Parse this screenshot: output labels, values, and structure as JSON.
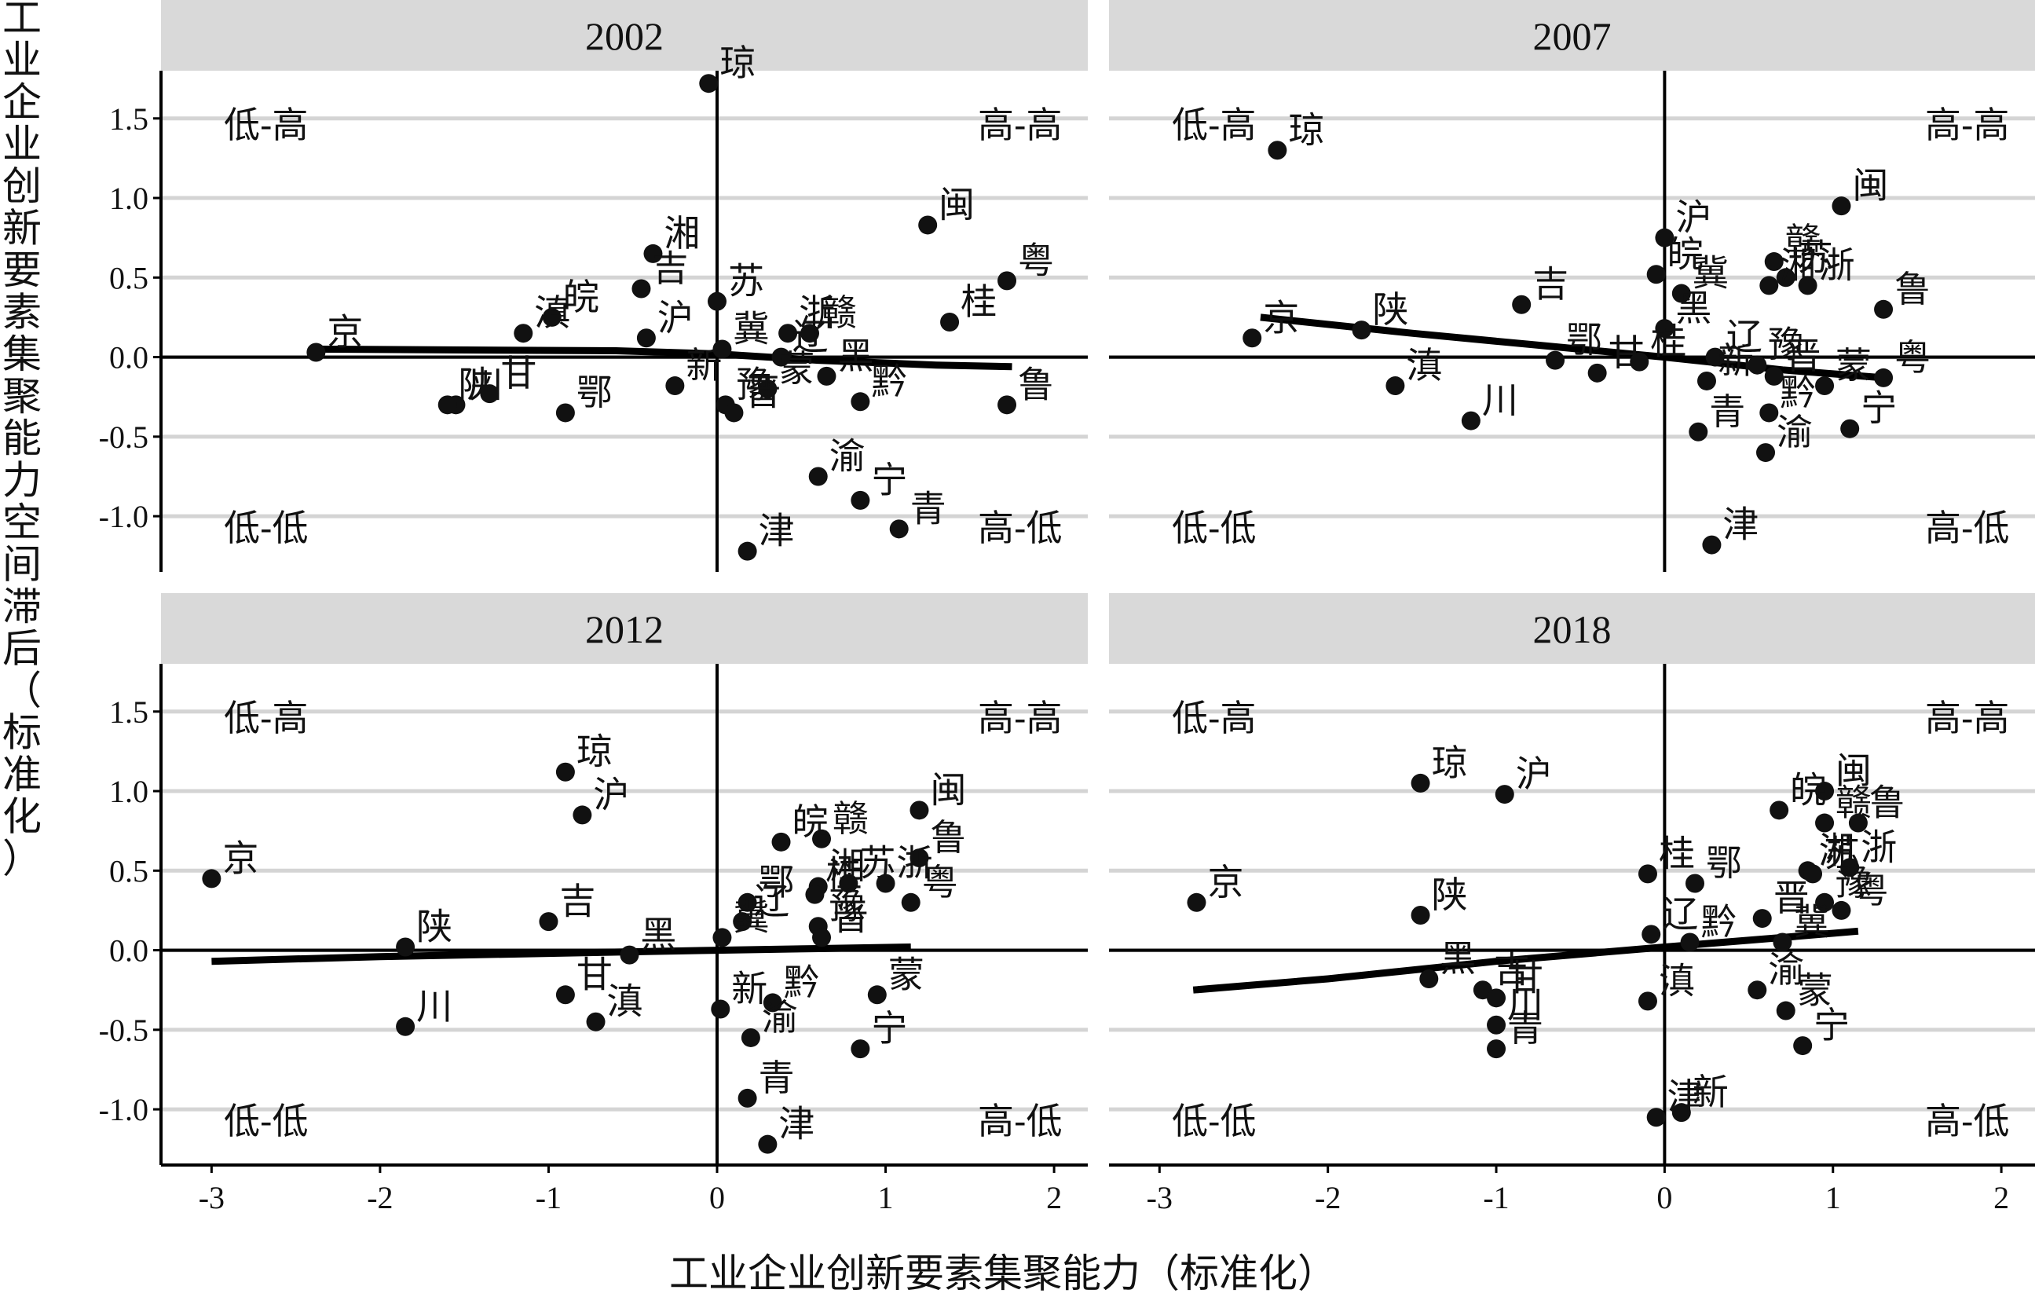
{
  "chart_data": {
    "type": "scatter",
    "xlabel": "工业企业创新要素集聚能力（标准化）",
    "ylabel": "工业企业创新要素集聚能力空间滞后（标准化）",
    "xlim": [
      -3.3,
      2.2
    ],
    "ylim": [
      -1.35,
      1.8
    ],
    "x_ticks": [
      -3,
      -2,
      -1,
      0,
      1,
      2
    ],
    "y_ticks": [
      -1.0,
      -0.5,
      0.0,
      0.5,
      1.0,
      1.5
    ],
    "y_tick_labels": [
      "-1.0",
      "-0.5",
      "0.0",
      "0.5",
      "1.0",
      "1.5"
    ],
    "x_tick_labels": [
      "-3",
      "-2",
      "-1",
      "0",
      "1",
      "2"
    ],
    "grid": "horizontal",
    "quadrant_labels": {
      "top_left": "低-高",
      "top_right": "高-高",
      "bottom_left": "低-低",
      "bottom_right": "高-低"
    },
    "panels": [
      {
        "title": "2002",
        "trend": [
          [
            -2.4,
            0.05
          ],
          [
            -0.6,
            0.04
          ],
          [
            0.0,
            0.02
          ],
          [
            0.6,
            -0.02
          ],
          [
            1.3,
            -0.05
          ],
          [
            1.75,
            -0.06
          ]
        ],
        "points": [
          {
            "name": "琼",
            "x": -0.05,
            "y": 1.72
          },
          {
            "name": "闽",
            "x": 1.25,
            "y": 0.83
          },
          {
            "name": "湘",
            "x": -0.38,
            "y": 0.65
          },
          {
            "name": "粤",
            "x": 1.72,
            "y": 0.48
          },
          {
            "name": "吉",
            "x": -0.45,
            "y": 0.43
          },
          {
            "name": "苏",
            "x": 0.0,
            "y": 0.35
          },
          {
            "name": "皖",
            "x": -0.98,
            "y": 0.25
          },
          {
            "name": "桂",
            "x": 1.38,
            "y": 0.22
          },
          {
            "name": "滇",
            "x": -1.15,
            "y": 0.15
          },
          {
            "name": "沪",
            "x": -0.42,
            "y": 0.12
          },
          {
            "name": "浙",
            "x": 0.42,
            "y": 0.15
          },
          {
            "name": "赣",
            "x": 0.55,
            "y": 0.15
          },
          {
            "name": "京",
            "x": -2.38,
            "y": 0.03
          },
          {
            "name": "冀",
            "x": 0.03,
            "y": 0.05
          },
          {
            "name": "辽",
            "x": 0.38,
            "y": 0.0
          },
          {
            "name": "新",
            "x": -0.25,
            "y": -0.18
          },
          {
            "name": "蒙",
            "x": 0.3,
            "y": -0.2
          },
          {
            "name": "黑",
            "x": 0.65,
            "y": -0.12
          },
          {
            "name": "豫",
            "x": 0.05,
            "y": -0.3
          },
          {
            "name": "川",
            "x": -1.55,
            "y": -0.3
          },
          {
            "name": "陕",
            "x": -1.6,
            "y": -0.3
          },
          {
            "name": "甘",
            "x": -1.35,
            "y": -0.23
          },
          {
            "name": "鄂",
            "x": -0.9,
            "y": -0.35
          },
          {
            "name": "晋",
            "x": 0.1,
            "y": -0.35
          },
          {
            "name": "黔",
            "x": 0.85,
            "y": -0.28
          },
          {
            "name": "鲁",
            "x": 1.72,
            "y": -0.3
          },
          {
            "name": "渝",
            "x": 0.6,
            "y": -0.75
          },
          {
            "name": "宁",
            "x": 0.85,
            "y": -0.9
          },
          {
            "name": "青",
            "x": 1.08,
            "y": -1.08
          },
          {
            "name": "津",
            "x": 0.18,
            "y": -1.22
          }
        ]
      },
      {
        "title": "2007",
        "trend": [
          [
            -2.4,
            0.25
          ],
          [
            -1.5,
            0.15
          ],
          [
            -0.8,
            0.08
          ],
          [
            0.0,
            0.0
          ],
          [
            0.7,
            -0.08
          ],
          [
            1.3,
            -0.13
          ]
        ],
        "points": [
          {
            "name": "琼",
            "x": -2.3,
            "y": 1.3
          },
          {
            "name": "闽",
            "x": 1.05,
            "y": 0.95
          },
          {
            "name": "沪",
            "x": 0.0,
            "y": 0.75
          },
          {
            "name": "赣",
            "x": 0.65,
            "y": 0.6
          },
          {
            "name": "苏",
            "x": 0.72,
            "y": 0.5
          },
          {
            "name": "湘",
            "x": 0.62,
            "y": 0.45
          },
          {
            "name": "皖",
            "x": -0.05,
            "y": 0.52
          },
          {
            "name": "浙",
            "x": 0.85,
            "y": 0.45
          },
          {
            "name": "冀",
            "x": 0.1,
            "y": 0.4
          },
          {
            "name": "吉",
            "x": -0.85,
            "y": 0.33
          },
          {
            "name": "鲁",
            "x": 1.3,
            "y": 0.3
          },
          {
            "name": "黑",
            "x": 0.0,
            "y": 0.18
          },
          {
            "name": "京",
            "x": -2.45,
            "y": 0.12
          },
          {
            "name": "陕",
            "x": -1.8,
            "y": 0.17
          },
          {
            "name": "辽",
            "x": 0.3,
            "y": 0.0
          },
          {
            "name": "豫",
            "x": 0.55,
            "y": -0.05
          },
          {
            "name": "鄂",
            "x": -0.65,
            "y": -0.02
          },
          {
            "name": "甘",
            "x": -0.4,
            "y": -0.1
          },
          {
            "name": "桂",
            "x": -0.15,
            "y": -0.03
          },
          {
            "name": "晋",
            "x": 0.65,
            "y": -0.12
          },
          {
            "name": "粤",
            "x": 1.3,
            "y": -0.13
          },
          {
            "name": "新",
            "x": 0.25,
            "y": -0.15
          },
          {
            "name": "蒙",
            "x": 0.95,
            "y": -0.18
          },
          {
            "name": "滇",
            "x": -1.6,
            "y": -0.18
          },
          {
            "name": "黔",
            "x": 0.62,
            "y": -0.35
          },
          {
            "name": "川",
            "x": -1.15,
            "y": -0.4
          },
          {
            "name": "宁",
            "x": 1.1,
            "y": -0.45
          },
          {
            "name": "青",
            "x": 0.2,
            "y": -0.47
          },
          {
            "name": "渝",
            "x": 0.6,
            "y": -0.6
          },
          {
            "name": "津",
            "x": 0.28,
            "y": -1.18
          }
        ]
      },
      {
        "title": "2012",
        "trend": [
          [
            -3.0,
            -0.07
          ],
          [
            -2.0,
            -0.04
          ],
          [
            -1.0,
            -0.02
          ],
          [
            0.0,
            0.0
          ],
          [
            0.6,
            0.01
          ],
          [
            1.15,
            0.02
          ]
        ],
        "points": [
          {
            "name": "琼",
            "x": -0.9,
            "y": 1.12
          },
          {
            "name": "闽",
            "x": 1.2,
            "y": 0.88
          },
          {
            "name": "沪",
            "x": -0.8,
            "y": 0.85
          },
          {
            "name": "赣",
            "x": 0.62,
            "y": 0.7
          },
          {
            "name": "皖",
            "x": 0.38,
            "y": 0.68
          },
          {
            "name": "鲁",
            "x": 1.2,
            "y": 0.58
          },
          {
            "name": "京",
            "x": -3.0,
            "y": 0.45
          },
          {
            "name": "湘",
            "x": 0.6,
            "y": 0.4
          },
          {
            "name": "桂",
            "x": 0.58,
            "y": 0.35
          },
          {
            "name": "苏",
            "x": 0.78,
            "y": 0.42
          },
          {
            "name": "浙",
            "x": 1.0,
            "y": 0.42
          },
          {
            "name": "粤",
            "x": 1.15,
            "y": 0.3
          },
          {
            "name": "鄂",
            "x": 0.18,
            "y": 0.3
          },
          {
            "name": "吉",
            "x": -1.0,
            "y": 0.18
          },
          {
            "name": "辽",
            "x": 0.15,
            "y": 0.18
          },
          {
            "name": "豫",
            "x": 0.6,
            "y": 0.15
          },
          {
            "name": "晋",
            "x": 0.62,
            "y": 0.08
          },
          {
            "name": "冀",
            "x": 0.03,
            "y": 0.08
          },
          {
            "name": "陕",
            "x": -1.85,
            "y": 0.02
          },
          {
            "name": "黑",
            "x": -0.52,
            "y": -0.03
          },
          {
            "name": "甘",
            "x": -0.9,
            "y": -0.28
          },
          {
            "name": "蒙",
            "x": 0.95,
            "y": -0.28
          },
          {
            "name": "黔",
            "x": 0.33,
            "y": -0.33
          },
          {
            "name": "新",
            "x": 0.02,
            "y": -0.37
          },
          {
            "name": "滇",
            "x": -0.72,
            "y": -0.45
          },
          {
            "name": "川",
            "x": -1.85,
            "y": -0.48
          },
          {
            "name": "渝",
            "x": 0.2,
            "y": -0.55
          },
          {
            "name": "宁",
            "x": 0.85,
            "y": -0.62
          },
          {
            "name": "青",
            "x": 0.18,
            "y": -0.93
          },
          {
            "name": "津",
            "x": 0.3,
            "y": -1.22
          }
        ]
      },
      {
        "title": "2018",
        "trend": [
          [
            -2.8,
            -0.25
          ],
          [
            -2.0,
            -0.18
          ],
          [
            -1.0,
            -0.07
          ],
          [
            0.0,
            0.02
          ],
          [
            0.7,
            0.08
          ],
          [
            1.15,
            0.12
          ]
        ],
        "points": [
          {
            "name": "琼",
            "x": -1.45,
            "y": 1.05
          },
          {
            "name": "沪",
            "x": -0.95,
            "y": 0.98
          },
          {
            "name": "闽",
            "x": 0.95,
            "y": 1.0
          },
          {
            "name": "皖",
            "x": 0.68,
            "y": 0.88
          },
          {
            "name": "赣",
            "x": 0.95,
            "y": 0.8
          },
          {
            "name": "鲁",
            "x": 1.15,
            "y": 0.8
          },
          {
            "name": "湘",
            "x": 0.85,
            "y": 0.5
          },
          {
            "name": "苏",
            "x": 0.88,
            "y": 0.48
          },
          {
            "name": "浙",
            "x": 1.1,
            "y": 0.52
          },
          {
            "name": "桂",
            "x": -0.1,
            "y": 0.48
          },
          {
            "name": "鄂",
            "x": 0.18,
            "y": 0.42
          },
          {
            "name": "京",
            "x": -2.78,
            "y": 0.3
          },
          {
            "name": "豫",
            "x": 0.95,
            "y": 0.3
          },
          {
            "name": "晋",
            "x": 0.58,
            "y": 0.2
          },
          {
            "name": "粤",
            "x": 1.05,
            "y": 0.25
          },
          {
            "name": "陕",
            "x": -1.45,
            "y": 0.22
          },
          {
            "name": "辽",
            "x": -0.08,
            "y": 0.1
          },
          {
            "name": "黔",
            "x": 0.15,
            "y": 0.05
          },
          {
            "name": "冀",
            "x": 0.7,
            "y": 0.05
          },
          {
            "name": "黑",
            "x": -1.4,
            "y": -0.18
          },
          {
            "name": "吉",
            "x": -1.08,
            "y": -0.25
          },
          {
            "name": "甘",
            "x": -1.0,
            "y": -0.3
          },
          {
            "name": "滇",
            "x": -0.1,
            "y": -0.32
          },
          {
            "name": "渝",
            "x": 0.55,
            "y": -0.25
          },
          {
            "name": "蒙",
            "x": 0.72,
            "y": -0.38
          },
          {
            "name": "川",
            "x": -1.0,
            "y": -0.47
          },
          {
            "name": "宁",
            "x": 0.82,
            "y": -0.6
          },
          {
            "name": "青",
            "x": -1.0,
            "y": -0.62
          },
          {
            "name": "新",
            "x": 0.1,
            "y": -1.02
          },
          {
            "name": "津",
            "x": -0.05,
            "y": -1.05
          }
        ]
      }
    ]
  }
}
